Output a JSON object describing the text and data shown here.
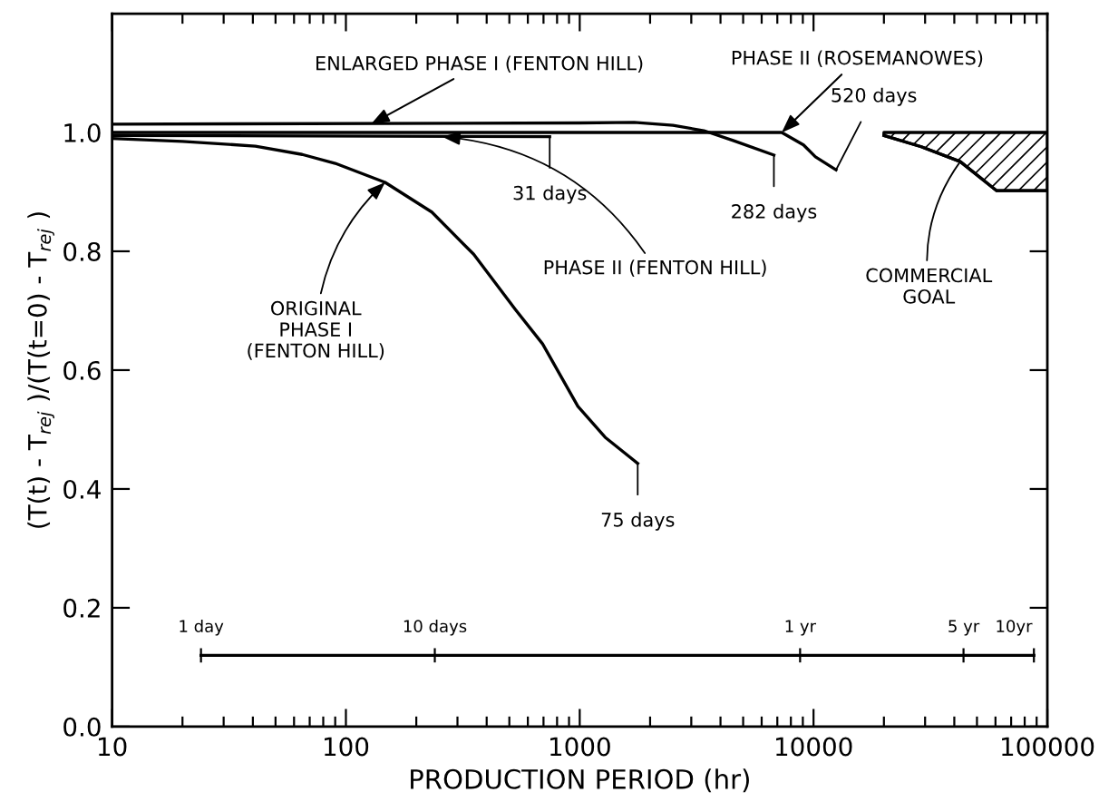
{
  "chart_data": {
    "type": "line",
    "xlabel": "PRODUCTION PERIOD (hr)",
    "ylabel": "(T(t) - T$_{rej}$ )/(T(t=0) - T$_{rej}$ )",
    "log": "x",
    "xlim": [
      10,
      100000
    ],
    "xticks": [
      10,
      100,
      1000,
      10000,
      100000
    ],
    "ylim": [
      0,
      1.2
    ],
    "yticks": [
      {
        "value": 0,
        "label": "0.0"
      },
      {
        "value": 0.2,
        "label": "0.2"
      },
      {
        "value": 0.4,
        "label": "0.4"
      },
      {
        "value": 0.6,
        "label": "0.6"
      },
      {
        "value": 0.8,
        "label": "0.8"
      },
      {
        "value": 1.0,
        "label": "1.0"
      }
    ],
    "grid": false,
    "legend": false,
    "series": [
      {
        "color": "#000000",
        "x": [
          10,
          20,
          41,
          65,
          90,
          147,
          233,
          352,
          531,
          694,
          982,
          1284,
          1770
        ],
        "values": [
          0.99,
          0.985,
          0.977,
          0.963,
          0.948,
          0.916,
          0.866,
          0.795,
          0.702,
          0.644,
          0.539,
          0.487,
          0.443
        ]
      },
      {
        "color": "#000000",
        "x": [
          10,
          744
        ],
        "values": [
          0.995,
          0.993
        ]
      },
      {
        "color": "#000000",
        "x": [
          10,
          1000,
          1710,
          2505,
          3396,
          4560,
          6768
        ],
        "values": [
          1.014,
          1.016,
          1.017,
          1.012,
          1.003,
          0.986,
          0.962
        ]
      },
      {
        "color": "#000000",
        "x": [
          10,
          7310,
          9060,
          10190,
          12480
        ],
        "values": [
          1.0,
          1.0,
          0.979,
          0.959,
          0.937
        ]
      },
      {
        "color": "#000000",
        "x": [
          20000,
          28900,
          42400,
          60700,
          100000
        ],
        "values": [
          0.995,
          0.976,
          0.951,
          0.902,
          0.902
        ],
        "lower": [
          0.995,
          0.976,
          0.951,
          0.902,
          0.902
        ],
        "upper": [
          1.0,
          1.0,
          1.0,
          1.0,
          1.0
        ]
      },
      {
        "color": "#000000",
        "x": [
          24,
          240,
          8760,
          43800,
          87600
        ],
        "values": [
          0.12,
          0.12,
          0.12,
          0.12,
          0.12
        ],
        "errors": [
          0.012,
          0.012,
          0.012,
          0.012,
          0.012
        ]
      }
    ],
    "annotations": [
      {
        "text": "ENLARGED PHASE I (FENTON HILL)",
        "x": 128,
        "y": 1.014
      },
      {
        "text": "PHASE II (ROSEMANOWES)",
        "x": 7310,
        "y": 1.0
      },
      {
        "text": "520 days",
        "x": 12480,
        "y": 0.937
      },
      {
        "text": "282 days",
        "x": 6768,
        "y": 0.962
      },
      {
        "text": "31 days",
        "x": 744,
        "y": 0.993
      },
      {
        "text": "75 days",
        "x": 1770,
        "y": 0.443
      },
      {
        "text": "PHASE II (FENTON HILL)",
        "x": 258,
        "y": 0.993
      },
      {
        "text": "ORIGINAL\nPHASE I\n(FENTON HILL)",
        "x": 147,
        "y": 0.916
      },
      {
        "text": "COMMERCIAL\nGOAL",
        "x": 42400,
        "y": 0.951
      },
      {
        "text": "1 day",
        "x": 24,
        "y": 0.12
      },
      {
        "text": "10 days",
        "x": 240,
        "y": 0.12
      },
      {
        "text": "1 yr",
        "x": 8760,
        "y": 0.12
      },
      {
        "text": "5 yr",
        "x": 43800,
        "y": 0.12
      },
      {
        "text": "10yr",
        "x": 87600,
        "y": 0.12
      }
    ]
  }
}
